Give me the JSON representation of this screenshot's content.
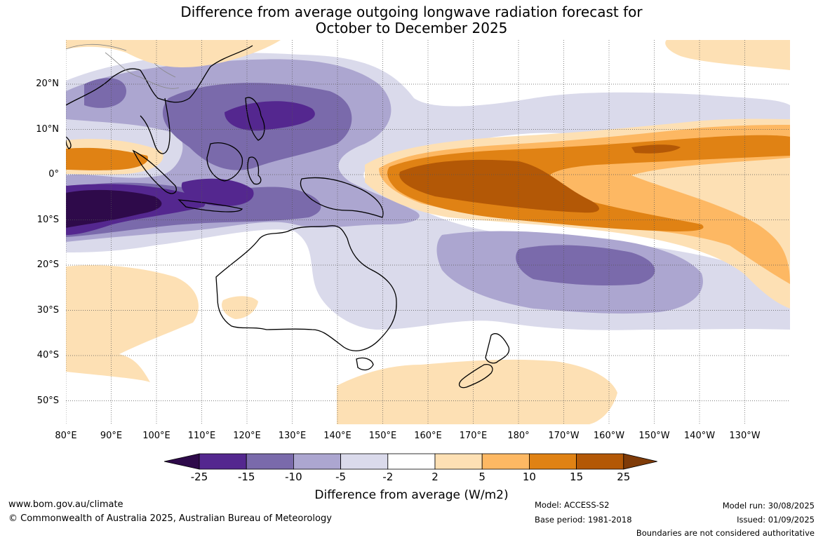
{
  "title_line1": "Difference from average outgoing longwave radiation forecast for",
  "title_line2": "October to December 2025",
  "lon_labels": [
    "80°E",
    "90°E",
    "100°E",
    "110°E",
    "120°E",
    "130°E",
    "140°E",
    "150°E",
    "160°E",
    "170°E",
    "180°",
    "170°W",
    "160°W",
    "150°W",
    "140°W",
    "130°W"
  ],
  "lat_labels": [
    "20°N",
    "10°N",
    "0°",
    "10°S",
    "20°S",
    "30°S",
    "40°S",
    "50°S"
  ],
  "legend": {
    "ticks": [
      "-25",
      "-15",
      "-10",
      "-5",
      "-2",
      "2",
      "5",
      "10",
      "15",
      "25"
    ],
    "colors": [
      "#2e0a4a",
      "#54278f",
      "#7a6aab",
      "#aca6d0",
      "#dadaeb",
      "#ffffff",
      "#fde0b4",
      "#fdb863",
      "#e08214",
      "#b35806",
      "#7f3b08"
    ],
    "title": "Difference from average (W/m2)"
  },
  "footer": {
    "website": "www.bom.gov.au/climate",
    "copyright": "© Commonwealth of Australia 2025, Australian Bureau of Meteorology",
    "model": "Model: ACCESS-S2",
    "base_period": "Base period: 1981-2018",
    "model_run": "Model run: 30/08/2025",
    "issued": "Issued: 01/09/2025",
    "disclaimer": "Boundaries are not considered authoritative"
  }
}
